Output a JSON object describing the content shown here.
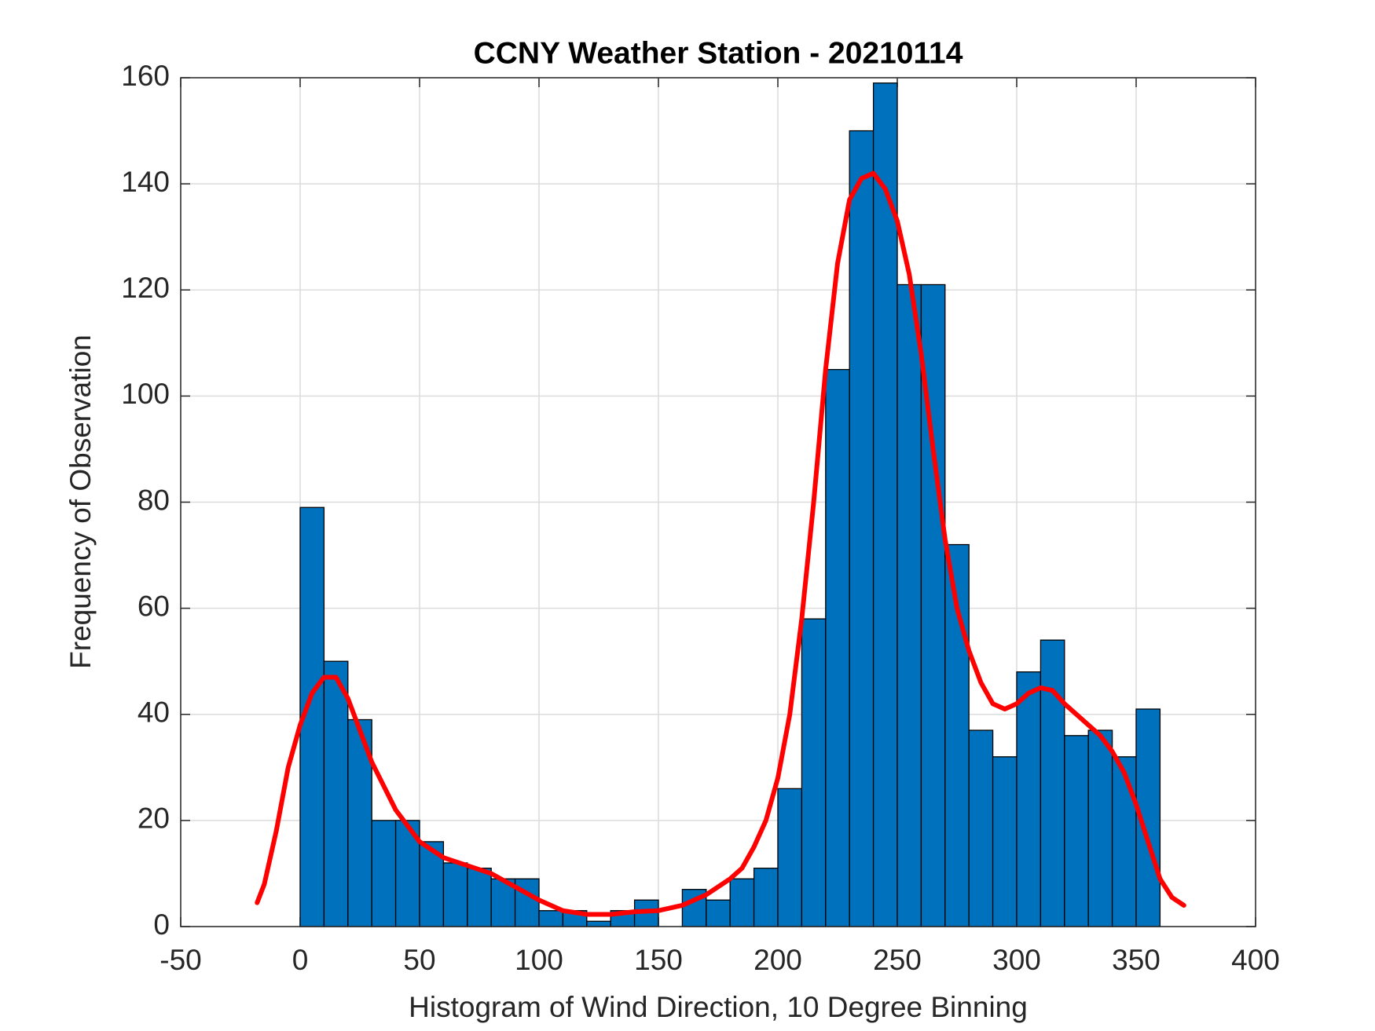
{
  "chart_data": {
    "type": "histogram",
    "title": "CCNY Weather Station - 20210114",
    "xlabel": "Histogram of Wind Direction, 10 Degree Binning",
    "ylabel": "Frequency of Observation",
    "bins": [
      0,
      10,
      20,
      30,
      40,
      50,
      60,
      70,
      80,
      90,
      100,
      110,
      120,
      130,
      140,
      150,
      160,
      170,
      180,
      190,
      200,
      210,
      220,
      230,
      240,
      250,
      260,
      270,
      280,
      290,
      300,
      310,
      320,
      330,
      340,
      350,
      360
    ],
    "values": [
      79,
      50,
      39,
      20,
      20,
      16,
      12,
      11,
      9,
      9,
      3,
      3,
      1,
      3,
      5,
      0,
      7,
      5,
      9,
      11,
      26,
      58,
      105,
      150,
      159,
      121,
      121,
      72,
      37,
      32,
      48,
      54,
      36,
      37,
      32,
      41
    ],
    "color": "#0072bd",
    "line": {
      "color": "#ff0000",
      "x": [
        -18,
        -15,
        -10,
        -5,
        0,
        5,
        10,
        15,
        20,
        25,
        30,
        40,
        50,
        60,
        70,
        80,
        90,
        100,
        110,
        120,
        130,
        140,
        150,
        160,
        170,
        180,
        185,
        190,
        195,
        200,
        205,
        210,
        215,
        220,
        225,
        230,
        235,
        240,
        245,
        250,
        255,
        260,
        265,
        270,
        275,
        280,
        285,
        290,
        295,
        300,
        305,
        310,
        315,
        320,
        330,
        335,
        340,
        345,
        350,
        355,
        360,
        365,
        370
      ],
      "values": [
        4.5,
        8,
        18,
        30,
        38,
        44,
        47,
        47,
        43,
        37,
        31,
        22,
        16,
        13,
        11.5,
        10,
        7.5,
        5,
        3,
        2.3,
        2.3,
        2.8,
        3,
        4,
        6,
        9,
        11,
        15,
        20,
        28,
        40,
        58,
        80,
        105,
        125,
        137,
        141,
        142,
        139,
        133,
        123,
        108,
        90,
        73,
        60,
        52,
        46,
        42,
        41,
        42,
        44,
        45,
        44.5,
        42,
        38,
        36,
        33,
        29,
        23,
        16,
        9,
        5.5,
        4
      ]
    },
    "xlim": [
      -50,
      400
    ],
    "xticks": [
      -50,
      0,
      50,
      100,
      150,
      200,
      250,
      300,
      350,
      400
    ],
    "ylim": [
      0,
      160
    ],
    "yticks": [
      0,
      20,
      40,
      60,
      80,
      100,
      120,
      140,
      160
    ],
    "grid": true
  }
}
